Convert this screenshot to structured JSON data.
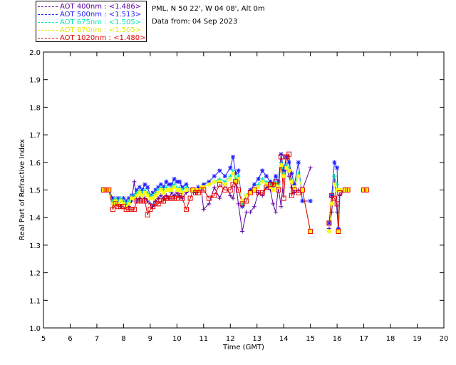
{
  "header": {
    "site_line": "PML, N 50 22', W 04 08', Alt 0m",
    "date_line": "Data from: 04 Sep 2023"
  },
  "legend": [
    {
      "label": "AOT  400nm : <1.486>",
      "color": "#5a00a0"
    },
    {
      "label": "AOT  500nm : <1.513>",
      "color": "#1e1eff"
    },
    {
      "label": "AOT  675nm : <1.505>",
      "color": "#00e6b4"
    },
    {
      "label": "AOT  870nm : <1.505>",
      "color": "#ffff00"
    },
    {
      "label": "AOT 1020nm : <1.480>",
      "color": "#e60000"
    }
  ],
  "chart_data": {
    "type": "scatter",
    "title": "",
    "xlabel": "Time (GMT)",
    "ylabel": "Real Part of Refractive Index",
    "xlim": [
      5,
      20
    ],
    "ylim": [
      1.0,
      2.0
    ],
    "x_ticks": [
      "5",
      "6",
      "7",
      "8",
      "9",
      "10",
      "11",
      "12",
      "13",
      "14",
      "15",
      "16",
      "17",
      "18",
      "19",
      "20"
    ],
    "y_ticks": [
      "1.0",
      "1.1",
      "1.2",
      "1.3",
      "1.4",
      "1.5",
      "1.6",
      "1.7",
      "1.8",
      "1.9",
      "2.0"
    ],
    "grid": false,
    "legend_position": "top-left, above plot",
    "series": [
      {
        "name": "AOT  400nm : <1.486>",
        "color": "#5a00a0",
        "marker": "plus",
        "lines": true,
        "x": [
          7.25,
          7.35,
          7.45,
          7.6,
          7.7,
          7.8,
          7.9,
          8.0,
          8.1,
          8.2,
          8.3,
          8.4,
          8.5,
          8.6,
          8.7,
          8.8,
          8.9,
          9.0,
          9.1,
          9.2,
          9.3,
          9.4,
          9.5,
          9.6,
          9.7,
          9.8,
          9.9,
          10.0,
          10.1,
          10.2,
          10.35,
          10.5,
          10.6,
          10.7,
          10.8,
          10.9,
          11.0,
          11.2,
          11.4,
          11.6,
          11.8,
          12.0,
          12.1,
          12.2,
          12.3,
          12.45,
          12.6,
          12.75,
          12.9,
          13.05,
          13.2,
          13.35,
          13.5,
          13.6,
          13.7,
          13.8,
          13.9,
          14.0,
          14.1,
          14.2,
          14.3,
          14.4,
          14.55,
          14.7,
          15.0,
          15.7,
          15.8,
          15.9,
          16.0,
          16.05,
          16.1,
          16.3,
          16.4,
          17.0,
          17.1
        ],
        "y": [
          1.5,
          1.5,
          1.5,
          1.45,
          1.46,
          1.45,
          1.44,
          1.46,
          1.45,
          1.44,
          1.46,
          1.53,
          1.46,
          1.47,
          1.48,
          1.47,
          1.46,
          1.45,
          1.44,
          1.46,
          1.47,
          1.48,
          1.47,
          1.48,
          1.47,
          1.49,
          1.48,
          1.49,
          1.48,
          1.47,
          1.49,
          1.5,
          1.5,
          1.49,
          1.5,
          1.51,
          1.43,
          1.45,
          1.51,
          1.47,
          1.52,
          1.48,
          1.47,
          1.53,
          1.45,
          1.35,
          1.42,
          1.42,
          1.44,
          1.49,
          1.48,
          1.51,
          1.5,
          1.45,
          1.42,
          1.51,
          1.44,
          1.55,
          1.58,
          1.55,
          1.51,
          1.49,
          1.5,
          1.5,
          1.58,
          1.36,
          1.42,
          1.55,
          1.42,
          1.35,
          1.48,
          1.5,
          1.5,
          1.5,
          1.5
        ]
      },
      {
        "name": "AOT  500nm : <1.513>",
        "color": "#1e1eff",
        "marker": "asterisk",
        "lines": true,
        "x": [
          7.25,
          7.35,
          7.45,
          7.6,
          7.7,
          7.8,
          7.9,
          8.0,
          8.1,
          8.2,
          8.3,
          8.4,
          8.5,
          8.6,
          8.7,
          8.8,
          8.9,
          9.0,
          9.1,
          9.2,
          9.3,
          9.4,
          9.5,
          9.6,
          9.7,
          9.8,
          9.9,
          10.0,
          10.1,
          10.2,
          10.35,
          10.5,
          10.6,
          10.7,
          10.8,
          10.9,
          11.0,
          11.2,
          11.4,
          11.6,
          11.8,
          12.0,
          12.1,
          12.2,
          12.3,
          12.45,
          12.6,
          12.75,
          12.9,
          13.05,
          13.2,
          13.35,
          13.5,
          13.6,
          13.7,
          13.8,
          13.9,
          14.0,
          14.1,
          14.2,
          14.3,
          14.4,
          14.55,
          14.7,
          15.0,
          15.7,
          15.8,
          15.9,
          16.0,
          16.05,
          16.1,
          16.3,
          16.4,
          17.0,
          17.1
        ],
        "y": [
          1.5,
          1.5,
          1.5,
          1.47,
          1.46,
          1.47,
          1.46,
          1.47,
          1.46,
          1.47,
          1.48,
          1.48,
          1.5,
          1.51,
          1.5,
          1.52,
          1.51,
          1.48,
          1.49,
          1.5,
          1.51,
          1.52,
          1.51,
          1.53,
          1.52,
          1.52,
          1.54,
          1.53,
          1.53,
          1.51,
          1.52,
          1.5,
          1.5,
          1.5,
          1.51,
          1.51,
          1.52,
          1.53,
          1.55,
          1.57,
          1.55,
          1.58,
          1.62,
          1.56,
          1.57,
          1.44,
          1.48,
          1.5,
          1.52,
          1.54,
          1.57,
          1.55,
          1.53,
          1.52,
          1.55,
          1.53,
          1.63,
          1.57,
          1.62,
          1.6,
          1.56,
          1.52,
          1.6,
          1.46,
          1.46,
          1.38,
          1.48,
          1.6,
          1.58,
          1.36,
          1.5,
          1.5,
          1.5,
          1.5,
          1.5
        ]
      },
      {
        "name": "AOT  675nm : <1.505>",
        "color": "#00e6b4",
        "marker": "plus",
        "lines": true,
        "x": [
          7.25,
          7.35,
          7.45,
          7.6,
          7.7,
          7.8,
          7.9,
          8.0,
          8.1,
          8.2,
          8.3,
          8.4,
          8.5,
          8.6,
          8.7,
          8.8,
          8.9,
          9.0,
          9.1,
          9.2,
          9.3,
          9.4,
          9.5,
          9.6,
          9.7,
          9.8,
          9.9,
          10.0,
          10.1,
          10.2,
          10.35,
          10.5,
          10.6,
          10.7,
          10.8,
          10.9,
          11.0,
          11.2,
          11.4,
          11.6,
          11.8,
          12.0,
          12.1,
          12.2,
          12.3,
          12.45,
          12.6,
          12.75,
          12.9,
          13.05,
          13.2,
          13.35,
          13.5,
          13.6,
          13.7,
          13.8,
          13.9,
          14.0,
          14.1,
          14.2,
          14.3,
          14.4,
          14.55,
          14.7,
          15.0,
          15.7,
          15.8,
          15.9,
          16.0,
          16.05,
          16.1,
          16.3,
          16.4,
          17.0,
          17.1
        ],
        "y": [
          1.5,
          1.5,
          1.5,
          1.46,
          1.47,
          1.46,
          1.47,
          1.46,
          1.45,
          1.46,
          1.48,
          1.48,
          1.49,
          1.5,
          1.49,
          1.5,
          1.49,
          1.48,
          1.48,
          1.49,
          1.5,
          1.51,
          1.5,
          1.51,
          1.5,
          1.51,
          1.52,
          1.51,
          1.51,
          1.5,
          1.51,
          1.5,
          1.5,
          1.5,
          1.5,
          1.51,
          1.51,
          1.52,
          1.53,
          1.54,
          1.53,
          1.55,
          1.57,
          1.54,
          1.55,
          1.45,
          1.48,
          1.49,
          1.5,
          1.52,
          1.54,
          1.53,
          1.52,
          1.51,
          1.53,
          1.52,
          1.6,
          1.56,
          1.59,
          1.58,
          1.54,
          1.51,
          1.56,
          1.5,
          1.35,
          1.35,
          1.45,
          1.55,
          1.52,
          1.35,
          1.5,
          1.5,
          1.5,
          1.5,
          1.5
        ]
      },
      {
        "name": "AOT  870nm : <1.505>",
        "color": "#ffff00",
        "marker": "square-filled",
        "lines": true,
        "x": [
          7.25,
          7.35,
          7.45,
          7.6,
          7.7,
          7.8,
          7.9,
          8.0,
          8.1,
          8.2,
          8.3,
          8.4,
          8.5,
          8.6,
          8.7,
          8.8,
          8.9,
          9.0,
          9.1,
          9.2,
          9.3,
          9.4,
          9.5,
          9.6,
          9.7,
          9.8,
          9.9,
          10.0,
          10.1,
          10.2,
          10.35,
          10.5,
          10.6,
          10.7,
          10.8,
          10.9,
          11.0,
          11.2,
          11.4,
          11.6,
          11.8,
          12.0,
          12.1,
          12.2,
          12.3,
          12.45,
          12.6,
          12.75,
          12.9,
          13.05,
          13.2,
          13.35,
          13.5,
          13.6,
          13.7,
          13.8,
          13.9,
          14.0,
          14.1,
          14.2,
          14.3,
          14.4,
          14.55,
          14.7,
          15.0,
          15.7,
          15.8,
          15.9,
          16.0,
          16.05,
          16.1,
          16.3,
          16.4,
          17.0,
          17.1
        ],
        "y": [
          1.5,
          1.5,
          1.5,
          1.45,
          1.46,
          1.45,
          1.46,
          1.45,
          1.44,
          1.45,
          1.47,
          1.47,
          1.48,
          1.49,
          1.48,
          1.49,
          1.48,
          1.47,
          1.47,
          1.48,
          1.49,
          1.5,
          1.49,
          1.5,
          1.5,
          1.5,
          1.51,
          1.5,
          1.5,
          1.49,
          1.5,
          1.5,
          1.5,
          1.5,
          1.5,
          1.51,
          1.51,
          1.52,
          1.53,
          1.53,
          1.52,
          1.54,
          1.56,
          1.53,
          1.54,
          1.46,
          1.48,
          1.49,
          1.5,
          1.51,
          1.53,
          1.52,
          1.51,
          1.5,
          1.52,
          1.51,
          1.59,
          1.55,
          1.58,
          1.57,
          1.53,
          1.51,
          1.55,
          1.5,
          1.35,
          1.35,
          1.45,
          1.52,
          1.5,
          1.35,
          1.5,
          1.5,
          1.5,
          1.5,
          1.5
        ]
      },
      {
        "name": "AOT 1020nm : <1.480>",
        "color": "#e60000",
        "marker": "square-open",
        "lines": true,
        "x": [
          7.25,
          7.35,
          7.45,
          7.6,
          7.7,
          7.8,
          7.9,
          8.0,
          8.1,
          8.2,
          8.3,
          8.4,
          8.5,
          8.6,
          8.7,
          8.8,
          8.9,
          9.0,
          9.1,
          9.2,
          9.3,
          9.4,
          9.5,
          9.6,
          9.7,
          9.8,
          9.9,
          10.0,
          10.1,
          10.2,
          10.35,
          10.5,
          10.6,
          10.7,
          10.8,
          10.9,
          11.0,
          11.2,
          11.4,
          11.6,
          11.8,
          12.0,
          12.1,
          12.2,
          12.3,
          12.45,
          12.6,
          12.75,
          12.9,
          13.05,
          13.2,
          13.35,
          13.5,
          13.6,
          13.7,
          13.8,
          13.9,
          14.0,
          14.1,
          14.2,
          14.3,
          14.4,
          14.55,
          14.7,
          15.0,
          15.7,
          15.8,
          15.9,
          16.0,
          16.05,
          16.1,
          16.3,
          16.4,
          17.0,
          17.1
        ],
        "y": [
          1.5,
          1.5,
          1.5,
          1.43,
          1.45,
          1.44,
          1.44,
          1.44,
          1.43,
          1.43,
          1.43,
          1.43,
          1.46,
          1.46,
          1.46,
          1.46,
          1.41,
          1.43,
          1.44,
          1.45,
          1.45,
          1.46,
          1.46,
          1.47,
          1.47,
          1.47,
          1.47,
          1.47,
          1.48,
          1.47,
          1.43,
          1.47,
          1.5,
          1.49,
          1.49,
          1.5,
          1.5,
          1.47,
          1.48,
          1.52,
          1.5,
          1.5,
          1.52,
          1.53,
          1.5,
          1.45,
          1.46,
          1.49,
          1.5,
          1.49,
          1.49,
          1.51,
          1.52,
          1.52,
          1.53,
          1.5,
          1.62,
          1.47,
          1.62,
          1.63,
          1.48,
          1.5,
          1.49,
          1.5,
          1.35,
          1.38,
          1.48,
          1.47,
          1.45,
          1.35,
          1.49,
          1.5,
          1.5,
          1.5,
          1.5
        ]
      }
    ]
  }
}
